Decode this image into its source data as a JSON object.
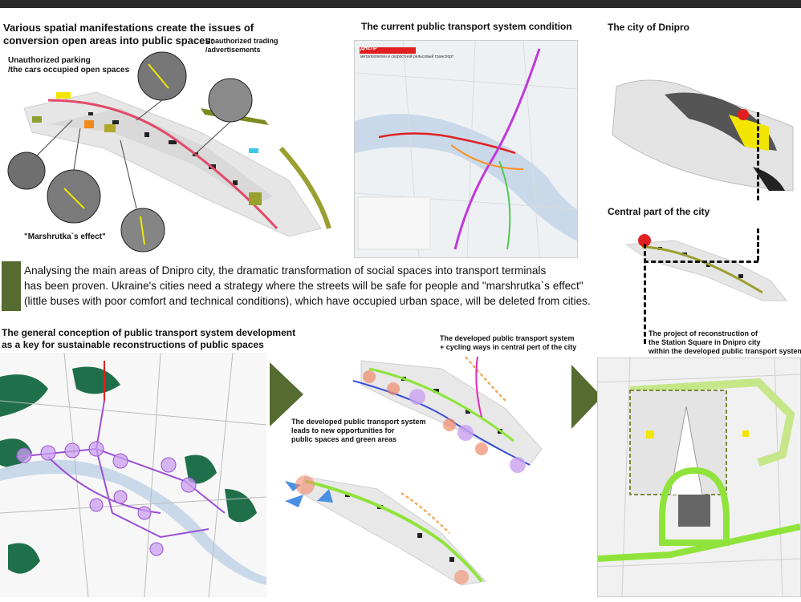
{
  "header": {
    "issues_title_line1": "Various spatial manifestations create the issues of",
    "issues_title_line2": "conversion open areas into public spaces:",
    "unauthorized_trading_line1": "Unauthorized trading",
    "unauthorized_trading_line2": "/advertisements",
    "unauthorized_parking_line1": "Unauthorized parking",
    "unauthorized_parking_line2": "/the cars occupied open spaces",
    "marshrutka_effect": "\"Marshrutka`s effect\"",
    "current_system_title": "The current public transport system condition",
    "city_title": "The city of Dnipro",
    "central_title": "Central part of the city"
  },
  "map_legend": {
    "city_name": "ДНЕПР",
    "subtitle": "метрополитен и скоростной рельсовый транспорт"
  },
  "paragraph": {
    "line1": "Analysing the main areas of Dnipro city, the dramatic transformation of social spaces into transport terminals",
    "line2": "has been proven. Ukraine's cities need a strategy where the streets will be safe for people and \"marshrutka`s effect\"",
    "line3": "(little buses with poor comfort and technical conditions), which have occupied urban space, will be deleted from cities."
  },
  "bottom": {
    "conception_line1": "The general conception of public transport system development",
    "conception_line2": "as a key for sustainable reconstructions of public spaces",
    "developed_cycling_line1": "The developed public transport system",
    "developed_cycling_line2": "+ cycling ways in central pert of the city",
    "opportunities_line1": "The developed public transport system",
    "opportunities_line2": "leads to new opportunities for",
    "opportunities_line3": "public spaces and green areas",
    "reconstruction_line1": "The project of reconstruction of",
    "reconstruction_line2": "the Station Square in Dnipro city",
    "reconstruction_line3": "within the developed public transport system"
  },
  "colors": {
    "olive": "#556b2f",
    "green": "#1f6f4a",
    "purple": "#b06ad9",
    "red": "#e02020",
    "yellow": "#f2e600",
    "lime": "#8fe33a",
    "river": "#c9d9ea"
  }
}
